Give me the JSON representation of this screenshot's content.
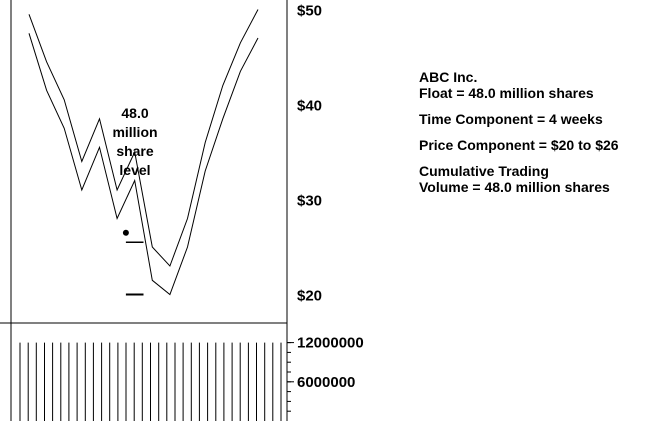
{
  "chart_data": {
    "type": "line",
    "title": "",
    "price_axis": {
      "min": 17,
      "max": 51,
      "ticks": [
        20,
        30,
        40,
        50
      ],
      "tick_labels": [
        "$20",
        "$30",
        "$40",
        "$50"
      ]
    },
    "volume_axis": {
      "min": 0,
      "max": 15000000,
      "ticks": [
        6000000,
        12000000
      ],
      "tick_labels": [
        "6000000",
        "12000000"
      ]
    },
    "x": [
      0,
      2,
      4,
      6,
      8,
      10,
      12,
      14,
      16,
      18,
      20,
      22,
      24,
      26
    ],
    "series": [
      {
        "values": [
          49.5,
          44.5,
          40.5,
          34,
          38.5,
          31,
          35,
          25,
          23,
          28,
          36,
          42,
          46.5,
          50
        ]
      },
      {
        "values": [
          47.5,
          41.5,
          37.5,
          31,
          35.5,
          28,
          32,
          21.5,
          20,
          25,
          33,
          38.5,
          43.5,
          47
        ]
      }
    ],
    "support_levels": [
      {
        "price": 25.5,
        "x_from": 11,
        "x_to": 13
      },
      {
        "price": 20,
        "x_from": 11,
        "x_to": 13
      }
    ],
    "marker": {
      "x": 11,
      "price": 26.5
    },
    "volume": {
      "count": 33,
      "values": [
        12000000,
        12000000,
        12000000,
        12000000,
        12000000,
        12000000,
        12000000,
        12000000,
        12000000,
        12000000,
        12000000,
        12000000,
        12000000,
        12000000,
        12000000,
        12000000,
        12000000,
        12000000,
        12000000,
        12000000,
        12000000,
        12000000,
        12000000,
        12000000,
        12000000,
        12000000,
        12000000,
        12000000,
        12000000,
        12000000,
        12000000,
        12000000,
        12000000
      ]
    },
    "annotation": [
      "48.0",
      "million",
      "share",
      "level"
    ]
  },
  "info": {
    "company": "ABC Inc.",
    "float": "Float = 48.0 million shares",
    "time_component": "Time Component = 4 weeks",
    "price_component": "Price Component = $20 to $26",
    "cumulative_line1": "Cumulative Trading",
    "cumulative_line2": "Volume = 48.0 million shares"
  }
}
